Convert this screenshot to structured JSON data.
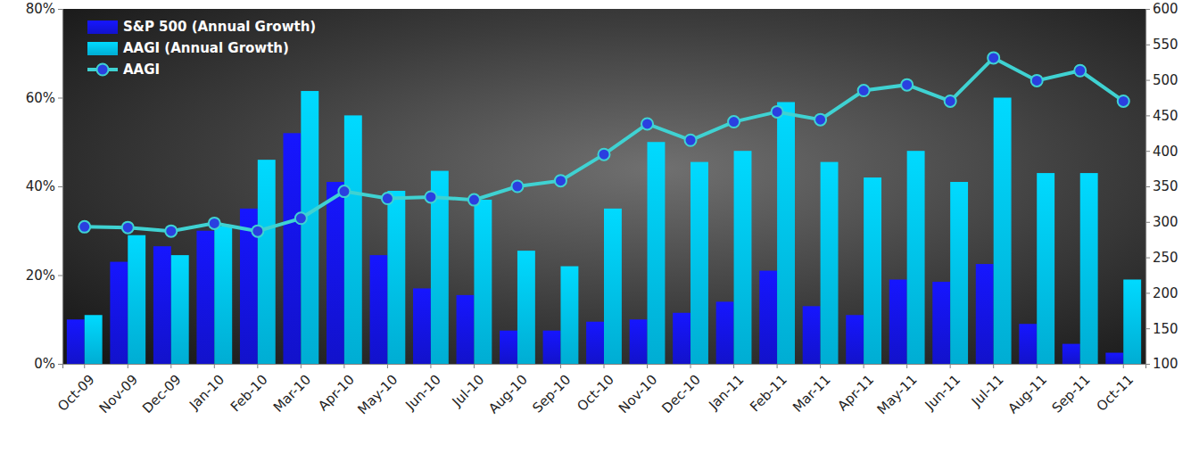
{
  "chart_data": {
    "type": "bar",
    "categories": [
      "Oct-09",
      "Nov-09",
      "Dec-09",
      "Jan-10",
      "Feb-10",
      "Mar-10",
      "Apr-10",
      "May-10",
      "Jun-10",
      "Jul-10",
      "Aug-10",
      "Sep-10",
      "Oct-10",
      "Nov-10",
      "Dec-10",
      "Jan-11",
      "Feb-11",
      "Mar-11",
      "Apr-11",
      "May-11",
      "Jun-11",
      "Jul-11",
      "Aug-11",
      "Sep-11",
      "Oct-11"
    ],
    "series": [
      {
        "name": "S&P 500 (Annual Growth)",
        "type": "bar",
        "color": "#1414e6",
        "values": [
          10,
          23,
          26.5,
          30,
          35,
          52,
          41,
          24.5,
          17,
          15.5,
          7.5,
          7.5,
          9.5,
          10,
          11.5,
          14,
          21,
          13,
          11,
          19,
          18.5,
          22.5,
          9,
          4.5,
          2.5
        ]
      },
      {
        "name": "AAGI (Annual Growth)",
        "type": "bar",
        "color": "#00c4ef",
        "values": [
          11,
          29,
          24.5,
          31,
          46,
          61.5,
          56,
          39,
          43.5,
          37,
          25.5,
          22,
          35,
          50,
          45.5,
          48,
          59,
          45.5,
          42,
          48,
          41,
          60,
          43,
          43,
          19
        ]
      },
      {
        "name": "AAGI",
        "type": "line",
        "axis": "y2",
        "color": "#3fd2d2",
        "marker": "circle",
        "line_style": "solid",
        "values": [
          293,
          292,
          287,
          298,
          287,
          305,
          343,
          333,
          335,
          331,
          350,
          358,
          395,
          438,
          415,
          441,
          455,
          444,
          485,
          493,
          470,
          531,
          499,
          513,
          470
        ]
      }
    ],
    "ylim": [
      0,
      80
    ],
    "yticks": [
      {
        "value": 0,
        "label": "0%"
      },
      {
        "value": 20,
        "label": "20%"
      },
      {
        "value": 40,
        "label": "40%"
      },
      {
        "value": 60,
        "label": "60%"
      },
      {
        "value": 80,
        "label": "80%"
      }
    ],
    "y2lim": [
      100,
      600
    ],
    "y2ticks": [
      100,
      150,
      200,
      250,
      300,
      350,
      400,
      450,
      500,
      550,
      600
    ],
    "grid": false,
    "legend": "upper left"
  }
}
